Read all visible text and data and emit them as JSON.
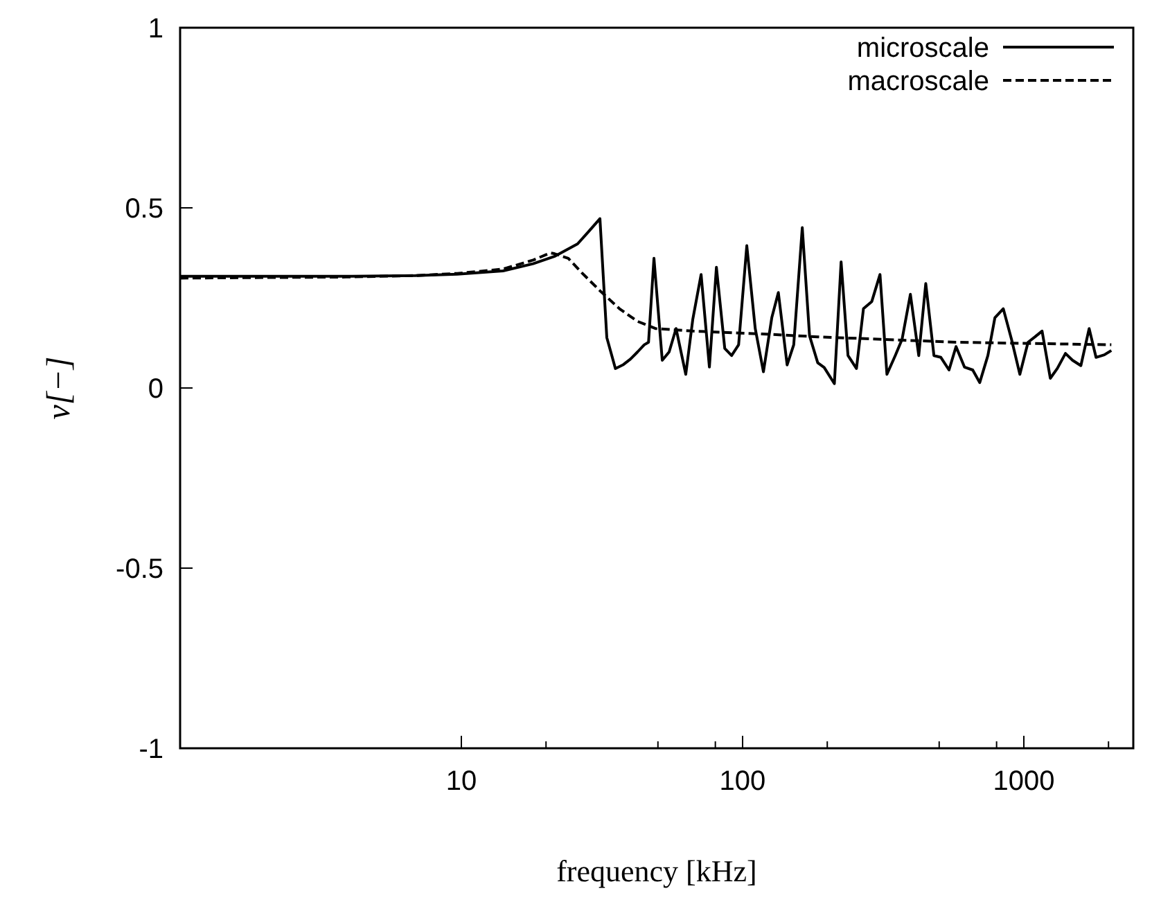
{
  "chart_data": {
    "type": "line",
    "xlabel": "frequency [kHz]",
    "ylabel": "ν[−]",
    "log": "x",
    "xlim": [
      1,
      2450
    ],
    "ylim": [
      -1,
      1
    ],
    "xticks": [
      10,
      {
        "value": 20,
        "label": null
      },
      {
        "value": 50,
        "label": null
      },
      {
        "value": 80,
        "label": null
      },
      100,
      {
        "value": 200,
        "label": null
      },
      {
        "value": 500,
        "label": null
      },
      {
        "value": 800,
        "label": null
      },
      1000,
      {
        "value": 2000,
        "label": null
      }
    ],
    "yticks": [
      -1,
      -0.5,
      0,
      0.5,
      1
    ],
    "grid": false,
    "legend": "top right",
    "series": [
      {
        "name": "microscale",
        "color": "#000000",
        "line_style": "solid",
        "x": [
          1,
          2.21,
          3.9,
          6.88,
          9.67,
          14.06,
          18,
          21.4,
          25.9,
          28.4,
          31.1,
          32.9,
          35.3,
          37.7,
          39.9,
          42.3,
          44.7,
          46.3,
          48.4,
          51.8,
          54.8,
          58,
          62.8,
          66.5,
          71.2,
          76.2,
          80.7,
          86.4,
          91.4,
          96.8,
          103.5,
          110.9,
          118.6,
          127,
          134,
          144,
          152,
          163,
          173,
          185,
          195,
          212,
          224,
          237,
          254,
          269,
          288,
          308,
          326,
          349,
          369,
          395,
          423,
          448,
          479,
          507,
          542,
          574,
          615,
          658,
          697,
          745,
          789,
          845,
          904,
          968,
          1035,
          1096,
          1161,
          1242,
          1315,
          1406,
          1490,
          1595,
          1707,
          1806,
          1933,
          2047
        ],
        "values": [
          0.31,
          0.31,
          0.31,
          0.312,
          0.316,
          0.325,
          0.345,
          0.365,
          0.4,
          0.435,
          0.47,
          0.14,
          0.054,
          0.065,
          0.08,
          0.1,
          0.12,
          0.127,
          0.36,
          0.077,
          0.1,
          0.165,
          0.038,
          0.19,
          0.315,
          0.058,
          0.335,
          0.11,
          0.09,
          0.12,
          0.395,
          0.165,
          0.045,
          0.195,
          0.265,
          0.064,
          0.12,
          0.445,
          0.145,
          0.07,
          0.057,
          0.012,
          0.35,
          0.09,
          0.054,
          0.22,
          0.24,
          0.315,
          0.038,
          0.09,
          0.135,
          0.26,
          0.09,
          0.29,
          0.09,
          0.085,
          0.05,
          0.115,
          0.058,
          0.05,
          0.015,
          0.09,
          0.195,
          0.22,
          0.135,
          0.038,
          0.127,
          0.142,
          0.158,
          0.027,
          0.054,
          0.096,
          0.077,
          0.062,
          0.165,
          0.085,
          0.092,
          0.104
        ]
      },
      {
        "name": "macroscale",
        "color": "#000000",
        "line_style": "dashed",
        "x": [
          1,
          3.9,
          6.88,
          9.67,
          14.06,
          18,
          20.7,
          21.4,
          24,
          26.8,
          31.1,
          36.5,
          42.3,
          49,
          66.5,
          117.2,
          185,
          574,
          2047
        ],
        "values": [
          0.305,
          0.308,
          0.312,
          0.318,
          0.33,
          0.355,
          0.375,
          0.373,
          0.36,
          0.32,
          0.27,
          0.22,
          0.185,
          0.165,
          0.158,
          0.15,
          0.142,
          0.127,
          0.12
        ]
      }
    ]
  }
}
